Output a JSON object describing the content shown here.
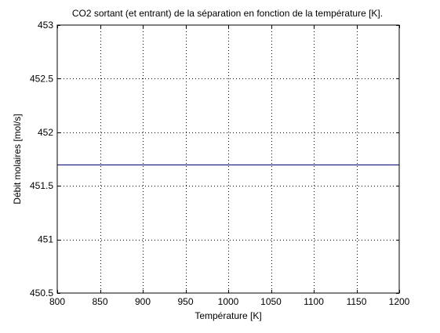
{
  "chart_data": {
    "type": "line",
    "title": "CO2 sortant (et entrant) de la séparation en fonction de la température [K].",
    "xlabel": "Température [K]",
    "ylabel": "Débit molaires [mol/s]",
    "xlim": [
      800,
      1200
    ],
    "ylim": [
      450.5,
      453
    ],
    "xticks": [
      800,
      850,
      900,
      950,
      1000,
      1050,
      1100,
      1150,
      1200
    ],
    "yticks": [
      450.5,
      451,
      451.5,
      452,
      452.5,
      453
    ],
    "xtick_labels": [
      "800",
      "850",
      "900",
      "950",
      "1000",
      "1050",
      "1100",
      "1150",
      "1200"
    ],
    "ytick_labels": [
      "450.5",
      "451",
      "451.5",
      "452",
      "452.5",
      "453"
    ],
    "grid": true,
    "series": [
      {
        "x": [
          800,
          1200
        ],
        "y": [
          451.7,
          451.7
        ],
        "color": "#00007f"
      }
    ]
  }
}
